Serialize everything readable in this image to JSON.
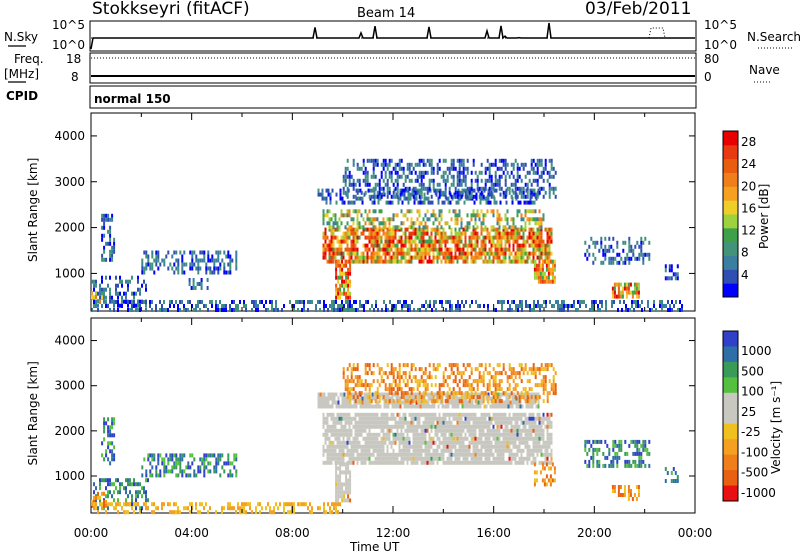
{
  "header": {
    "station": "Stokkseyri (fitACF)",
    "beam": "Beam 14",
    "date": "03/Feb/2011"
  },
  "summary": {
    "nsky_label": "N.Sky",
    "nsky_ticks": [
      "10^5",
      "10^0"
    ],
    "nsearch_label": "N.Search",
    "nsearch_ticks": [
      "10^5",
      "10^0"
    ],
    "freq_label_1": "Freq.",
    "freq_label_2": "[MHz]",
    "freq_ticks": [
      "18",
      "8"
    ],
    "nave_label": "Nave",
    "nave_ticks": [
      "80",
      "0"
    ],
    "cpid_label": "CPID",
    "cpid_value": "normal 150"
  },
  "colors": {
    "power": [
      "#0000ff",
      "#2f4fb2",
      "#3a7fa0",
      "#43927a",
      "#3ea048",
      "#9ed23c",
      "#f0ce2a",
      "#f5a020",
      "#f07e1a",
      "#e85d10",
      "#e83a10",
      "#e80000"
    ],
    "velocity": [
      "#3040c8",
      "#2f6fa8",
      "#3a9a58",
      "#55c040",
      "#c8c8c0",
      "#c8c8c0",
      "#f0c020",
      "#f5a020",
      "#f07e1a",
      "#e86010",
      "#e81010"
    ]
  },
  "chart_data": [
    {
      "type": "heatmap",
      "panel": "power",
      "xlabel": "Time UT",
      "ylabel": "Slant Range [km]",
      "x_ticks": [
        "00:00",
        "04:00",
        "08:00",
        "12:00",
        "16:00",
        "20:00",
        "00:00"
      ],
      "x_range_hours": [
        0,
        24
      ],
      "y_ticks": [
        1000,
        2000,
        3000,
        4000
      ],
      "ylim": [
        180,
        4500
      ],
      "colorbar_label": "Power [dB]",
      "colorbar_ticks": [
        4,
        8,
        12,
        16,
        20,
        24,
        28
      ],
      "colorbar_range": [
        0,
        30
      ],
      "regions": [
        {
          "t": [
            0.0,
            2.3
          ],
          "r": [
            300,
            950
          ],
          "level": "low"
        },
        {
          "t": [
            0.0,
            0.5
          ],
          "r": [
            400,
            700
          ],
          "level": "mid"
        },
        {
          "t": [
            0.4,
            0.9
          ],
          "r": [
            1300,
            2300
          ],
          "level": "low"
        },
        {
          "t": [
            2.0,
            5.8
          ],
          "r": [
            1000,
            1500
          ],
          "level": "low"
        },
        {
          "t": [
            3.8,
            4.6
          ],
          "r": [
            700,
            900
          ],
          "level": "low"
        },
        {
          "t": [
            0.0,
            23.5
          ],
          "r": [
            200,
            420
          ],
          "level": "low"
        },
        {
          "t": [
            9.7,
            10.3
          ],
          "r": [
            450,
            1300
          ],
          "level": "high"
        },
        {
          "t": [
            9.2,
            18.3
          ],
          "r": [
            1300,
            2000
          ],
          "level": "high"
        },
        {
          "t": [
            9.2,
            18.0
          ],
          "r": [
            2000,
            2400
          ],
          "level": "mid"
        },
        {
          "t": [
            9.0,
            17.8
          ],
          "r": [
            2550,
            2850
          ],
          "level": "low"
        },
        {
          "t": [
            10.0,
            18.5
          ],
          "r": [
            2700,
            3500
          ],
          "level": "low"
        },
        {
          "t": [
            17.6,
            18.4
          ],
          "r": [
            800,
            1300
          ],
          "level": "high"
        },
        {
          "t": [
            19.6,
            22.2
          ],
          "r": [
            1200,
            1800
          ],
          "level": "low"
        },
        {
          "t": [
            20.7,
            21.8
          ],
          "r": [
            500,
            800
          ],
          "level": "high"
        },
        {
          "t": [
            22.8,
            23.3
          ],
          "r": [
            900,
            1200
          ],
          "level": "low"
        }
      ]
    },
    {
      "type": "heatmap",
      "panel": "velocity",
      "xlabel": "Time UT",
      "ylabel": "Slant Range [km]",
      "x_ticks": [
        "00:00",
        "04:00",
        "08:00",
        "12:00",
        "16:00",
        "20:00",
        "00:00"
      ],
      "x_range_hours": [
        0,
        24
      ],
      "y_ticks": [
        1000,
        2000,
        3000,
        4000
      ],
      "ylim": [
        180,
        4500
      ],
      "colorbar_label": "Velocity [m s⁻¹]",
      "colorbar_ticks": [
        "1000",
        "500",
        "100",
        "25",
        "-25",
        "-100",
        "-500",
        "-1000"
      ],
      "regions": [
        {
          "t": [
            0.0,
            2.3
          ],
          "r": [
            300,
            950
          ],
          "level": "pos"
        },
        {
          "t": [
            0.0,
            0.6
          ],
          "r": [
            350,
            650
          ],
          "level": "neg"
        },
        {
          "t": [
            0.4,
            0.9
          ],
          "r": [
            1300,
            2300
          ],
          "level": "pos"
        },
        {
          "t": [
            2.0,
            5.8
          ],
          "r": [
            1000,
            1500
          ],
          "level": "pos"
        },
        {
          "t": [
            0.0,
            10.0
          ],
          "r": [
            200,
            420
          ],
          "level": "neg_small"
        },
        {
          "t": [
            9.7,
            10.3
          ],
          "r": [
            450,
            1300
          ],
          "level": "zero"
        },
        {
          "t": [
            9.2,
            18.3
          ],
          "r": [
            1300,
            2400
          ],
          "level": "zero"
        },
        {
          "t": [
            9.0,
            17.8
          ],
          "r": [
            2550,
            2850
          ],
          "level": "zero"
        },
        {
          "t": [
            10.0,
            18.5
          ],
          "r": [
            2700,
            3500
          ],
          "level": "neg"
        },
        {
          "t": [
            17.6,
            18.4
          ],
          "r": [
            800,
            1300
          ],
          "level": "neg"
        },
        {
          "t": [
            19.6,
            22.2
          ],
          "r": [
            1200,
            1800
          ],
          "level": "pos"
        },
        {
          "t": [
            20.7,
            21.8
          ],
          "r": [
            500,
            800
          ],
          "level": "neg"
        },
        {
          "t": [
            22.8,
            23.3
          ],
          "r": [
            900,
            1200
          ],
          "level": "pos"
        }
      ]
    }
  ]
}
